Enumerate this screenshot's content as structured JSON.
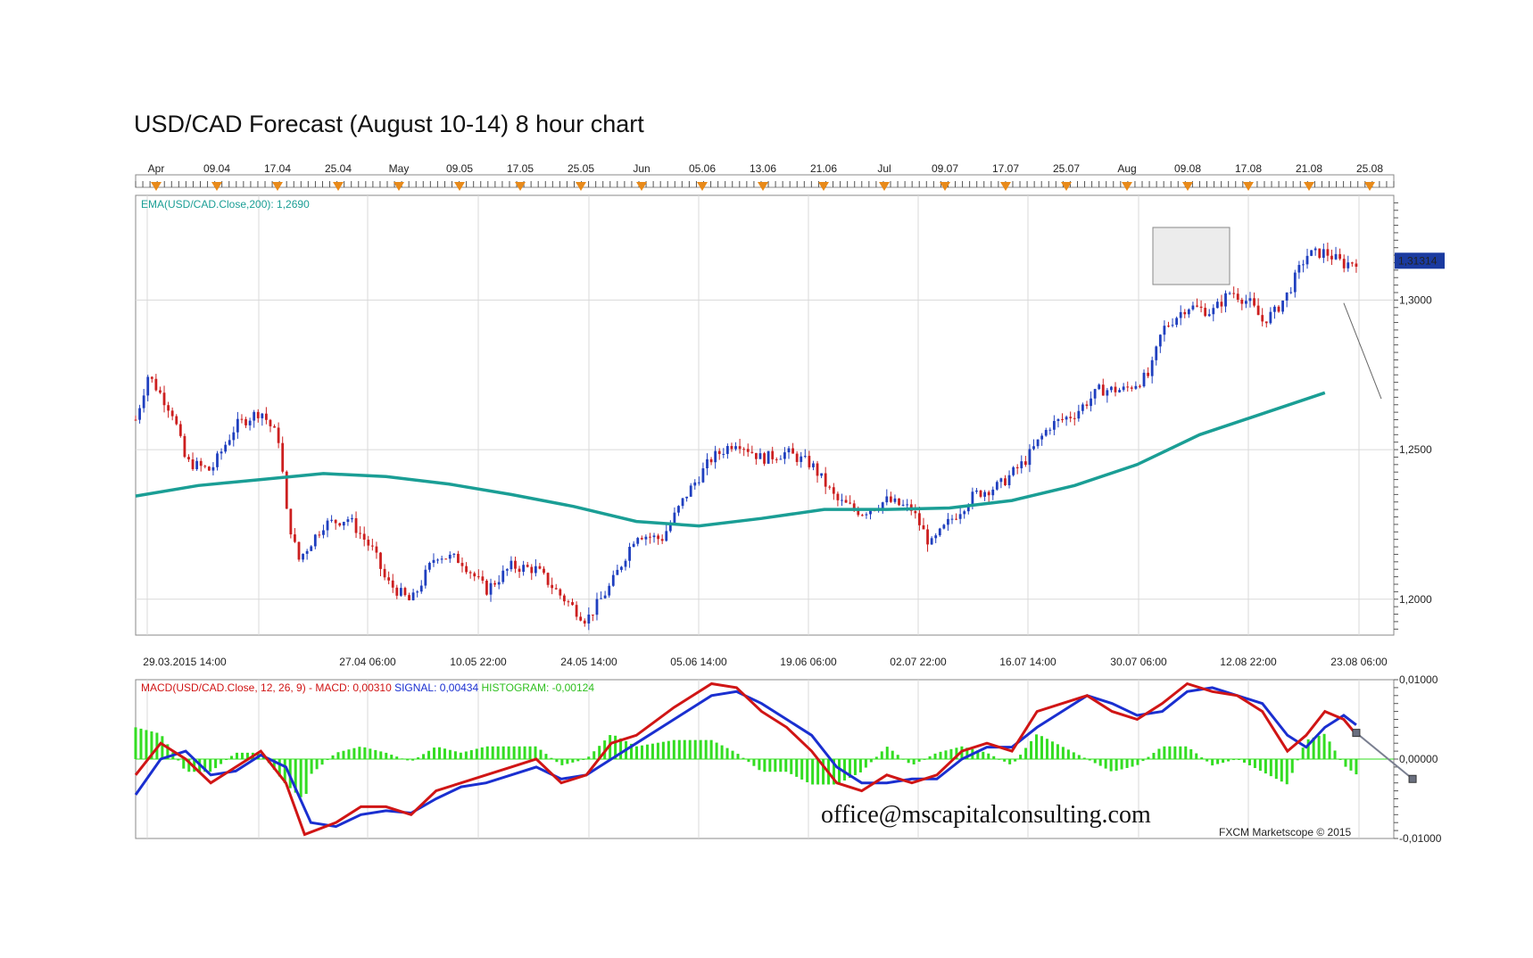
{
  "title": "USD/CAD Forecast (August 10-14) 8 hour chart",
  "email": "office@mscapitalconsulting.com",
  "credit": "FXCM Marketscope © 2015",
  "colors": {
    "bull": "#1f3fbf",
    "bear": "#cc1f1f",
    "ema": "#1a9e95",
    "macd": "#d01515",
    "signal": "#1a2fd0",
    "histogram": "#33dd22",
    "grid": "#d9d9d9",
    "price_badge": "#1a3aa0"
  },
  "chart_data": [
    {
      "type": "candlestick",
      "panel": "price",
      "top_axis_labels": [
        "Apr",
        "09.04",
        "17.04",
        "25.04",
        "May",
        "09.05",
        "17.05",
        "25.05",
        "Jun",
        "05.06",
        "13.06",
        "21.06",
        "Jul",
        "09.07",
        "17.07",
        "25.07",
        "Aug",
        "09.08",
        "17.08",
        "21.08",
        "25.08"
      ],
      "bottom_axis_labels": [
        "29.03.2015 14:00",
        "27.04 06:00",
        "10.05 22:00",
        "24.05 14:00",
        "05.06 14:00",
        "19.06 06:00",
        "02.07 22:00",
        "16.07 14:00",
        "30.07 06:00",
        "12.08 22:00",
        "23.08 06:00"
      ],
      "y_tick_labels": [
        "1,3000",
        "1,2500",
        "1,2000"
      ],
      "ylim": [
        1.188,
        1.335
      ],
      "last_price_label": "1,31314",
      "indicator_label": "EMA(USD/CAD.Close,200): 1,2690",
      "ema_points": [
        [
          0,
          1.2345
        ],
        [
          0.05,
          1.238
        ],
        [
          0.1,
          1.24
        ],
        [
          0.15,
          1.242
        ],
        [
          0.2,
          1.241
        ],
        [
          0.25,
          1.2385
        ],
        [
          0.3,
          1.235
        ],
        [
          0.35,
          1.231
        ],
        [
          0.4,
          1.226
        ],
        [
          0.45,
          1.2245
        ],
        [
          0.5,
          1.227
        ],
        [
          0.55,
          1.23
        ],
        [
          0.6,
          1.23
        ],
        [
          0.65,
          1.2305
        ],
        [
          0.7,
          1.233
        ],
        [
          0.75,
          1.238
        ],
        [
          0.8,
          1.245
        ],
        [
          0.85,
          1.255
        ],
        [
          0.9,
          1.262
        ],
        [
          0.95,
          1.269
        ]
      ],
      "close_path": [
        [
          0,
          1.26
        ],
        [
          0.01,
          1.275
        ],
        [
          0.03,
          1.262
        ],
        [
          0.04,
          1.246
        ],
        [
          0.06,
          1.243
        ],
        [
          0.08,
          1.258
        ],
        [
          0.1,
          1.263
        ],
        [
          0.115,
          1.253
        ],
        [
          0.12,
          1.23
        ],
        [
          0.13,
          1.213
        ],
        [
          0.15,
          1.225
        ],
        [
          0.17,
          1.227
        ],
        [
          0.19,
          1.216
        ],
        [
          0.2,
          1.206
        ],
        [
          0.22,
          1.199
        ],
        [
          0.24,
          1.215
        ],
        [
          0.26,
          1.213
        ],
        [
          0.28,
          1.203
        ],
        [
          0.3,
          1.211
        ],
        [
          0.32,
          1.21
        ],
        [
          0.34,
          1.201
        ],
        [
          0.36,
          1.193
        ],
        [
          0.38,
          1.205
        ],
        [
          0.4,
          1.222
        ],
        [
          0.42,
          1.22
        ],
        [
          0.44,
          1.235
        ],
        [
          0.46,
          1.247
        ],
        [
          0.48,
          1.253
        ],
        [
          0.5,
          1.247
        ],
        [
          0.52,
          1.249
        ],
        [
          0.54,
          1.245
        ],
        [
          0.56,
          1.233
        ],
        [
          0.58,
          1.229
        ],
        [
          0.6,
          1.233
        ],
        [
          0.62,
          1.23
        ],
        [
          0.635,
          1.218
        ],
        [
          0.65,
          1.226
        ],
        [
          0.67,
          1.235
        ],
        [
          0.69,
          1.238
        ],
        [
          0.71,
          1.246
        ],
        [
          0.73,
          1.258
        ],
        [
          0.75,
          1.262
        ],
        [
          0.77,
          1.27
        ],
        [
          0.79,
          1.27
        ],
        [
          0.81,
          1.275
        ],
        [
          0.82,
          1.29
        ],
        [
          0.84,
          1.298
        ],
        [
          0.86,
          1.296
        ],
        [
          0.875,
          1.303
        ],
        [
          0.89,
          1.299
        ],
        [
          0.9,
          1.293
        ],
        [
          0.91,
          1.296
        ],
        [
          0.92,
          1.302
        ],
        [
          0.935,
          1.315
        ],
        [
          0.95,
          1.316
        ],
        [
          0.965,
          1.312
        ],
        [
          0.975,
          1.3131
        ]
      ],
      "forecast_line": [
        [
          0.965,
          1.299
        ],
        [
          0.995,
          1.267
        ]
      ]
    },
    {
      "type": "macd",
      "panel": "indicator",
      "indicator_label": {
        "macd": "MACD(USD/CAD.Close, 12, 26, 9) -  MACD: 0,00310",
        "signal": "SIGNAL: 0,00434",
        "histogram": "HISTOGRAM: -0,00124"
      },
      "y_tick_labels": [
        "0,01000",
        "0,00000",
        "-0,01000"
      ],
      "ylim": [
        -0.01,
        0.01
      ],
      "macd_points": [
        [
          0,
          -0.002
        ],
        [
          0.02,
          0.002
        ],
        [
          0.04,
          0.0
        ],
        [
          0.06,
          -0.003
        ],
        [
          0.08,
          -0.001
        ],
        [
          0.1,
          0.001
        ],
        [
          0.12,
          -0.003
        ],
        [
          0.135,
          -0.0095
        ],
        [
          0.16,
          -0.008
        ],
        [
          0.18,
          -0.006
        ],
        [
          0.2,
          -0.006
        ],
        [
          0.22,
          -0.007
        ],
        [
          0.24,
          -0.004
        ],
        [
          0.26,
          -0.003
        ],
        [
          0.28,
          -0.002
        ],
        [
          0.3,
          -0.001
        ],
        [
          0.32,
          0.0
        ],
        [
          0.34,
          -0.003
        ],
        [
          0.36,
          -0.002
        ],
        [
          0.38,
          0.002
        ],
        [
          0.4,
          0.003
        ],
        [
          0.43,
          0.0065
        ],
        [
          0.46,
          0.0095
        ],
        [
          0.48,
          0.009
        ],
        [
          0.5,
          0.006
        ],
        [
          0.52,
          0.004
        ],
        [
          0.54,
          0.001
        ],
        [
          0.56,
          -0.003
        ],
        [
          0.58,
          -0.004
        ],
        [
          0.6,
          -0.002
        ],
        [
          0.62,
          -0.003
        ],
        [
          0.64,
          -0.002
        ],
        [
          0.66,
          0.001
        ],
        [
          0.68,
          0.002
        ],
        [
          0.7,
          0.001
        ],
        [
          0.72,
          0.006
        ],
        [
          0.74,
          0.007
        ],
        [
          0.76,
          0.008
        ],
        [
          0.78,
          0.006
        ],
        [
          0.8,
          0.005
        ],
        [
          0.82,
          0.007
        ],
        [
          0.84,
          0.0095
        ],
        [
          0.86,
          0.0085
        ],
        [
          0.88,
          0.008
        ],
        [
          0.9,
          0.006
        ],
        [
          0.92,
          0.001
        ],
        [
          0.935,
          0.003
        ],
        [
          0.95,
          0.006
        ],
        [
          0.965,
          0.005
        ],
        [
          0.975,
          0.0031
        ]
      ],
      "signal_points": [
        [
          0,
          -0.0045
        ],
        [
          0.02,
          0.0
        ],
        [
          0.04,
          0.001
        ],
        [
          0.06,
          -0.002
        ],
        [
          0.08,
          -0.0015
        ],
        [
          0.1,
          0.0005
        ],
        [
          0.12,
          -0.001
        ],
        [
          0.14,
          -0.008
        ],
        [
          0.16,
          -0.0085
        ],
        [
          0.18,
          -0.007
        ],
        [
          0.2,
          -0.0065
        ],
        [
          0.22,
          -0.0068
        ],
        [
          0.24,
          -0.005
        ],
        [
          0.26,
          -0.0035
        ],
        [
          0.28,
          -0.003
        ],
        [
          0.3,
          -0.002
        ],
        [
          0.32,
          -0.001
        ],
        [
          0.34,
          -0.0025
        ],
        [
          0.36,
          -0.002
        ],
        [
          0.38,
          0.0
        ],
        [
          0.4,
          0.002
        ],
        [
          0.43,
          0.005
        ],
        [
          0.46,
          0.008
        ],
        [
          0.48,
          0.0085
        ],
        [
          0.5,
          0.007
        ],
        [
          0.52,
          0.005
        ],
        [
          0.54,
          0.003
        ],
        [
          0.56,
          -0.001
        ],
        [
          0.58,
          -0.003
        ],
        [
          0.6,
          -0.003
        ],
        [
          0.62,
          -0.0025
        ],
        [
          0.64,
          -0.0025
        ],
        [
          0.66,
          0.0
        ],
        [
          0.68,
          0.0015
        ],
        [
          0.7,
          0.0015
        ],
        [
          0.72,
          0.004
        ],
        [
          0.74,
          0.006
        ],
        [
          0.76,
          0.008
        ],
        [
          0.78,
          0.007
        ],
        [
          0.8,
          0.0055
        ],
        [
          0.82,
          0.006
        ],
        [
          0.84,
          0.0085
        ],
        [
          0.86,
          0.009
        ],
        [
          0.88,
          0.008
        ],
        [
          0.9,
          0.007
        ],
        [
          0.92,
          0.003
        ],
        [
          0.935,
          0.0015
        ],
        [
          0.95,
          0.004
        ],
        [
          0.965,
          0.0055
        ],
        [
          0.975,
          0.0043
        ]
      ],
      "macd_forecast": [
        [
          0.975,
          0.0033
        ],
        [
          1.02,
          -0.0025
        ]
      ]
    }
  ]
}
